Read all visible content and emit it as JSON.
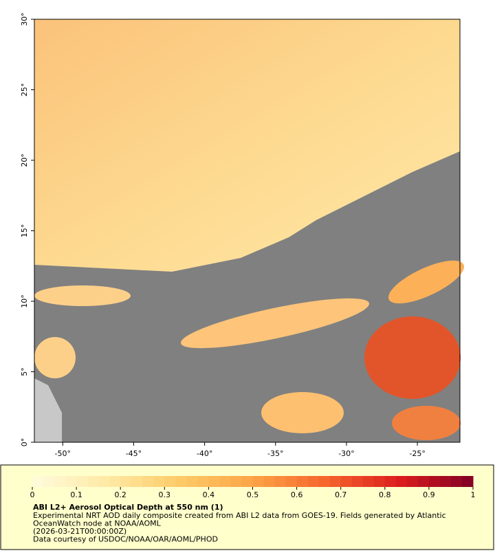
{
  "map": {
    "xlim": [
      -52,
      -22
    ],
    "ylim": [
      0,
      30
    ],
    "xticks": [
      {
        "value": -50,
        "label": "-50°"
      },
      {
        "value": -45,
        "label": "-45°"
      },
      {
        "value": -40,
        "label": "-40°"
      },
      {
        "value": -35,
        "label": "-35°"
      },
      {
        "value": -30,
        "label": "-30°"
      },
      {
        "value": -25,
        "label": "-25°"
      }
    ],
    "yticks": [
      {
        "value": 0,
        "label": "0°"
      },
      {
        "value": 5,
        "label": "5°"
      },
      {
        "value": 10,
        "label": "10°"
      },
      {
        "value": 15,
        "label": "15°"
      },
      {
        "value": 20,
        "label": "20°"
      },
      {
        "value": 25,
        "label": "25°"
      },
      {
        "value": 30,
        "label": "30°"
      }
    ]
  },
  "legend": {
    "ticks": [
      0,
      0.1,
      0.2,
      0.3,
      0.4,
      0.5,
      0.6,
      0.7,
      0.8,
      0.9,
      1
    ],
    "colors": [
      "#fffbdc",
      "#ffeaa6",
      "#fdcb68",
      "#fca446",
      "#f6652d",
      "#dc1d1e",
      "#800026"
    ]
  },
  "caption": {
    "title": "ABI L2+ Aerosol Optical Depth at 550 nm (1)",
    "lines": [
      "Experimental NRT AOD daily composite created from ABI L2 data from GOES-19. Fields generated by Atlantic",
      "OceanWatch node at NOAA/AOML",
      "(2026-03-21T00:00:00Z)",
      "Data courtesy of USDOC/NOAA/OAR/AOML/PHOD"
    ]
  }
}
